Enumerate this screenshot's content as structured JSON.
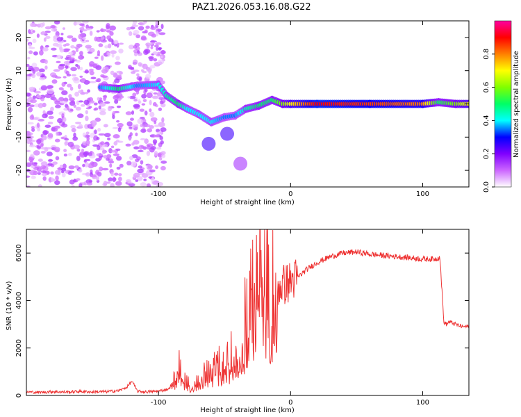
{
  "title": "PAZ1.2026.053.16.08.G22",
  "chart_data": [
    {
      "type": "heatmap",
      "title": "PAZ1.2026.053.16.08.G22",
      "xlabel": "Height of straight line (km)",
      "ylabel": "Frequency (Hz)",
      "xlim": [
        -200,
        135
      ],
      "ylim": [
        -25,
        25
      ],
      "x_ticks": [
        -100,
        0,
        100
      ],
      "x_tick_labels": [
        "-100",
        "0",
        "100"
      ],
      "y_ticks": [
        -20,
        -10,
        0,
        10,
        20
      ],
      "y_tick_labels": [
        "-20",
        "-10",
        "0",
        "10",
        "20"
      ],
      "colorbar": {
        "label": "Normalized spectral amplitude",
        "range": [
          0,
          1
        ],
        "ticks": [
          0.0,
          0.2,
          0.4,
          0.6,
          0.8
        ],
        "tick_labels": [
          "0.0",
          "0.2",
          "0.4",
          "0.6",
          "0.8"
        ],
        "colormap": [
          "#ffffff",
          "#cc66ff",
          "#8000ff",
          "#0000ff",
          "#00ffff",
          "#00ff66",
          "#80ff00",
          "#ffff00",
          "#ff8000",
          "#ff0000",
          "#ff00a0"
        ]
      },
      "noise_region_x": [
        -200,
        -96
      ],
      "ridge": [
        {
          "x": -144,
          "f": 5.0,
          "a": 0.35
        },
        {
          "x": -130,
          "f": 4.5,
          "a": 0.5
        },
        {
          "x": -116,
          "f": 5.5,
          "a": 0.35
        },
        {
          "x": -100,
          "f": 5.8,
          "a": 0.4
        },
        {
          "x": -94,
          "f": 2.5,
          "a": 0.45
        },
        {
          "x": -85,
          "f": 0.0,
          "a": 0.5
        },
        {
          "x": -78,
          "f": -1.5,
          "a": 0.4
        },
        {
          "x": -70,
          "f": -3.0,
          "a": 0.4
        },
        {
          "x": -60,
          "f": -5.5,
          "a": 0.4
        },
        {
          "x": -50,
          "f": -4.0,
          "a": 0.35
        },
        {
          "x": -42,
          "f": -3.5,
          "a": 0.35
        },
        {
          "x": -34,
          "f": -1.5,
          "a": 0.45
        },
        {
          "x": -24,
          "f": -0.5,
          "a": 0.5
        },
        {
          "x": -14,
          "f": 1.2,
          "a": 0.5
        },
        {
          "x": -6,
          "f": 0.0,
          "a": 0.6
        },
        {
          "x": 0,
          "f": 0.0,
          "a": 0.7
        },
        {
          "x": 20,
          "f": 0.0,
          "a": 0.9
        },
        {
          "x": 60,
          "f": 0.0,
          "a": 0.85
        },
        {
          "x": 100,
          "f": 0.0,
          "a": 0.8
        },
        {
          "x": 112,
          "f": 0.5,
          "a": 0.5
        },
        {
          "x": 125,
          "f": 0.0,
          "a": 0.6
        },
        {
          "x": 135,
          "f": 0.0,
          "a": 0.7
        }
      ],
      "branches": [
        {
          "x": -62,
          "f": -12.0,
          "a": 0.25
        },
        {
          "x": -48,
          "f": -9.0,
          "a": 0.25
        },
        {
          "x": -38,
          "f": -18.0,
          "a": 0.15
        }
      ]
    },
    {
      "type": "line",
      "xlabel": "Height of straight line (km)",
      "ylabel": "SNR (10 * v/v)",
      "xlim": [
        -200,
        135
      ],
      "ylim": [
        0,
        7000
      ],
      "x_ticks": [
        -100,
        0,
        100
      ],
      "x_tick_labels": [
        "-100",
        "0",
        "100"
      ],
      "y_ticks": [
        0,
        2000,
        4000,
        6000
      ],
      "y_tick_labels": [
        "0",
        "2000",
        "4000",
        "6000"
      ],
      "series": [
        {
          "name": "SNR",
          "color": "#ee3333",
          "x": [
            -200,
            -190,
            -180,
            -170,
            -160,
            -150,
            -140,
            -130,
            -124,
            -120,
            -116,
            -110,
            -100,
            -92,
            -88,
            -84,
            -80,
            -76,
            -70,
            -64,
            -58,
            -52,
            -46,
            -40,
            -36,
            -32,
            -28,
            -24,
            -22,
            -20,
            -18,
            -16,
            -12,
            -8,
            -4,
            0,
            6,
            12,
            20,
            30,
            40,
            50,
            60,
            70,
            80,
            90,
            100,
            110,
            113,
            114,
            116,
            118,
            120,
            125,
            130,
            135
          ],
          "values": [
            150,
            130,
            160,
            140,
            170,
            150,
            160,
            200,
            350,
            600,
            180,
            150,
            180,
            280,
            700,
            1400,
            600,
            400,
            600,
            900,
            1100,
            1300,
            1600,
            2000,
            2600,
            3600,
            4200,
            6500,
            6800,
            5500,
            4800,
            4400,
            4500,
            4600,
            4700,
            4800,
            5000,
            5300,
            5600,
            5850,
            6000,
            6050,
            5950,
            5900,
            5850,
            5800,
            5750,
            5750,
            5850,
            5000,
            3100,
            3000,
            3100,
            3000,
            2900,
            2900
          ]
        }
      ]
    }
  ]
}
